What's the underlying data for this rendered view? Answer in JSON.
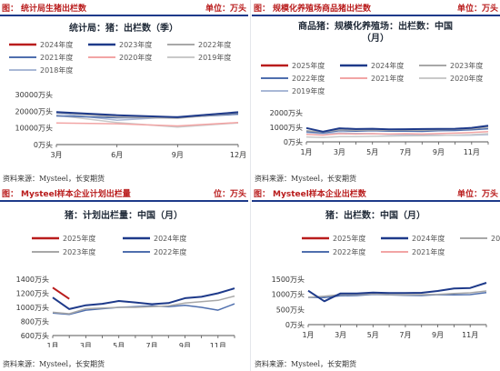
{
  "panels": [
    {
      "key": "tl",
      "header_prefix": "图：",
      "header_title": "统计局生猪出栏数",
      "header_unit": "单位：万头",
      "source": "资料来源：Mysteel，长安期货",
      "chart_data": {
        "type": "line",
        "title": "统计局：猪：出栏数（季）",
        "categories": [
          "3月",
          "6月",
          "9月",
          "12月"
        ],
        "ylim": [
          0,
          30000
        ],
        "yticks": [
          0,
          10000,
          20000,
          30000
        ],
        "ytick_labels": [
          "0万头",
          "10000万头",
          "20000万头",
          "30000万头"
        ],
        "series": [
          {
            "name": "2024年度",
            "color": "#b91c1c",
            "width": 2,
            "values": [
              null,
              null,
              null,
              null
            ]
          },
          {
            "name": "2023年度",
            "color": "#1e3a8a",
            "width": 2,
            "values": [
              19500,
              17600,
              16400,
              19400
            ]
          },
          {
            "name": "2022年度",
            "color": "#a8a8a8",
            "width": 1.5,
            "values": [
              19300,
              16600,
              15800,
              18900
            ]
          },
          {
            "name": "2021年度",
            "color": "#4f6fae",
            "width": 1.5,
            "values": [
              17200,
              16100,
              16200,
              18200
            ]
          },
          {
            "name": "2020年度",
            "color": "#f2a5a5",
            "width": 1.5,
            "values": [
              12900,
              12500,
              11200,
              13200
            ]
          },
          {
            "name": "2019年度",
            "color": "#c9c9c9",
            "width": 1.5,
            "values": [
              17600,
              13200,
              10500,
              13000
            ]
          },
          {
            "name": "2018年度",
            "color": "#a9b8d6",
            "width": 1.5,
            "values": [
              18800,
              14600,
              16700,
              19500
            ]
          }
        ]
      }
    },
    {
      "key": "tr",
      "header_prefix": "图：",
      "header_title": "规模化养殖场商品猪出栏数",
      "header_unit": "单位：万头",
      "source": "资料来源：Mysteel，长安期货",
      "chart_data": {
        "type": "line",
        "title": "商品猪：规模化养殖场：出栏数：中国（月）",
        "categories": [
          "1月",
          "2月",
          "3月",
          "4月",
          "5月",
          "6月",
          "7月",
          "8月",
          "9月",
          "10月",
          "11月",
          "12月"
        ],
        "xtick_labels": [
          "1月",
          "3月",
          "5月",
          "7月",
          "9月",
          "11月"
        ],
        "ylim": [
          0,
          2000
        ],
        "yticks": [
          0,
          1000,
          2000
        ],
        "ytick_labels": [
          "0万头",
          "1000万头",
          "2000万头"
        ],
        "series": [
          {
            "name": "2025年度",
            "color": "#b91c1c",
            "width": 2,
            "values": [
              null,
              null,
              null,
              null,
              null,
              null,
              null,
              null,
              null,
              null,
              null,
              null
            ]
          },
          {
            "name": "2024年度",
            "color": "#1e3a8a",
            "width": 2,
            "values": [
              950,
              700,
              930,
              880,
              900,
              860,
              870,
              880,
              890,
              900,
              960,
              1110
            ]
          },
          {
            "name": "2023年度",
            "color": "#a8a8a8",
            "width": 1.5,
            "values": [
              760,
              680,
              820,
              800,
              810,
              790,
              810,
              800,
              830,
              860,
              900,
              1020
            ]
          },
          {
            "name": "2022年度",
            "color": "#4f6fae",
            "width": 1.5,
            "values": [
              700,
              620,
              760,
              740,
              760,
              730,
              740,
              720,
              760,
              780,
              830,
              900
            ]
          },
          {
            "name": "2021年度",
            "color": "#f2a5a5",
            "width": 1.5,
            "values": [
              520,
              460,
              560,
              540,
              560,
              540,
              560,
              540,
              570,
              600,
              640,
              700
            ]
          },
          {
            "name": "2020年度",
            "color": "#c9c9c9",
            "width": 1.5,
            "values": [
              340,
              300,
              360,
              360,
              380,
              400,
              410,
              420,
              440,
              470,
              500,
              560
            ]
          },
          {
            "name": "2019年度",
            "color": "#a9b8d6",
            "width": 1.5,
            "values": [
              640,
              560,
              620,
              580,
              560,
              520,
              500,
              480,
              460,
              450,
              460,
              500
            ]
          }
        ]
      }
    },
    {
      "key": "bl",
      "header_prefix": "图：",
      "header_title": "Mysteel样本企业计划出栏量",
      "header_unit": "位：万头",
      "source": "资料来源：Mysteel，长安期货",
      "chart_data": {
        "type": "line",
        "title": "猪：计划出栏量：中国（月）",
        "categories": [
          "1月",
          "2月",
          "3月",
          "4月",
          "5月",
          "6月",
          "7月",
          "8月",
          "9月",
          "10月",
          "11月",
          "12月"
        ],
        "xtick_labels": [
          "1月",
          "3月",
          "5月",
          "7月",
          "9月",
          "11月"
        ],
        "ylim": [
          600,
          1400
        ],
        "yticks": [
          600,
          800,
          1000,
          1200,
          1400
        ],
        "ytick_labels": [
          "600万头",
          "800万头",
          "1000万头",
          "1200万头",
          "1400万头"
        ],
        "series": [
          {
            "name": "2025年度",
            "color": "#b91c1c",
            "width": 2,
            "values": [
              1280,
              1120,
              null,
              null,
              null,
              null,
              null,
              null,
              null,
              null,
              null,
              null
            ]
          },
          {
            "name": "2024年度",
            "color": "#1e3a8a",
            "width": 2,
            "values": [
              1140,
              975,
              1030,
              1050,
              1090,
              1070,
              1045,
              1060,
              1130,
              1150,
              1200,
              1270
            ]
          },
          {
            "name": "2023年度",
            "color": "#a8a8a8",
            "width": 1.5,
            "values": [
              930,
              910,
              980,
              990,
              1000,
              1000,
              1010,
              1020,
              1060,
              1080,
              1100,
              1160
            ]
          },
          {
            "name": "2022年度",
            "color": "#4f6fae",
            "width": 1.5,
            "values": [
              920,
              900,
              960,
              980,
              1000,
              1010,
              1020,
              1010,
              1030,
              1000,
              960,
              1050
            ]
          }
        ]
      }
    },
    {
      "key": "br",
      "header_prefix": "图：",
      "header_title": "Mysteel样本企业出栏数",
      "header_unit": "单位：万头",
      "source": "资料来源：Mysteel，长安期货",
      "chart_data": {
        "type": "line",
        "title": "猪：出栏数：中国（月）",
        "categories": [
          "1月",
          "2月",
          "3月",
          "4月",
          "5月",
          "6月",
          "7月",
          "8月",
          "9月",
          "10月",
          "11月",
          "12月"
        ],
        "xtick_labels": [
          "1月",
          "3月",
          "5月",
          "7月",
          "9月",
          "11月"
        ],
        "ylim": [
          0,
          1500
        ],
        "yticks": [
          0,
          500,
          1000,
          1500
        ],
        "ytick_labels": [
          "0万头",
          "500万头",
          "1000万头",
          "1500万头"
        ],
        "series": [
          {
            "name": "2025年度",
            "color": "#b91c1c",
            "width": 2,
            "values": [
              null,
              null,
              null,
              null,
              null,
              null,
              null,
              null,
              null,
              null,
              null,
              null
            ]
          },
          {
            "name": "2024年度",
            "color": "#1e3a8a",
            "width": 2,
            "values": [
              1120,
              770,
              1030,
              1030,
              1060,
              1040,
              1040,
              1050,
              1110,
              1190,
              1210,
              1380
            ]
          },
          {
            "name": "2023年度",
            "color": "#a8a8a8",
            "width": 1.5,
            "values": [
              900,
              940,
              990,
              990,
              1010,
              990,
              980,
              990,
              1000,
              1030,
              1050,
              1110
            ]
          },
          {
            "name": "2022年度",
            "color": "#4f6fae",
            "width": 1.5,
            "values": [
              900,
              890,
              950,
              960,
              1000,
              980,
              970,
              960,
              990,
              980,
              990,
              1060
            ]
          },
          {
            "name": "2021年度",
            "color": "#f2a5a5",
            "width": 1.5,
            "values": [
              null,
              null,
              null,
              null,
              null,
              null,
              null,
              null,
              null,
              null,
              null,
              null
            ]
          }
        ]
      }
    }
  ]
}
